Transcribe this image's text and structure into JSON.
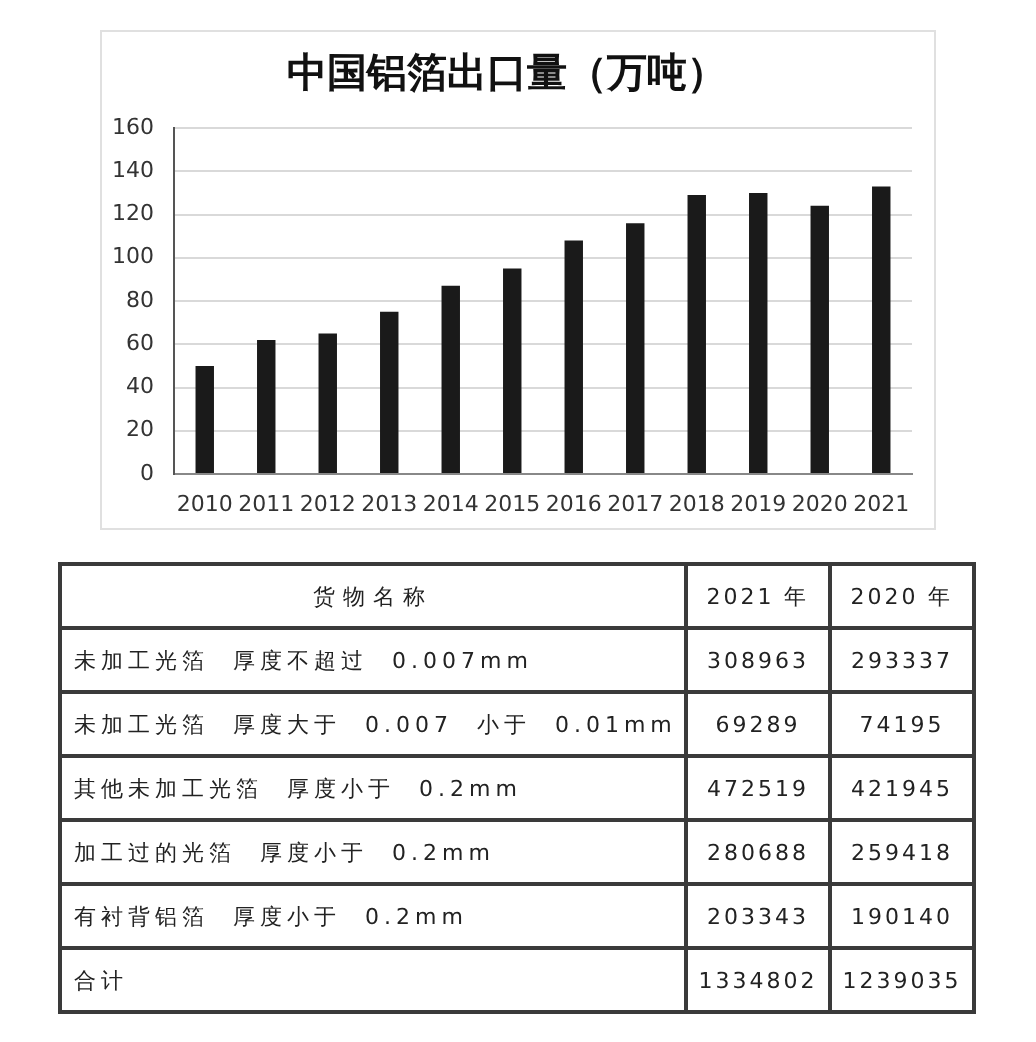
{
  "chart_data": [
    {
      "type": "bar",
      "title": "中国铝箔出口量（万吨）",
      "categories": [
        "2010",
        "2011",
        "2012",
        "2013",
        "2014",
        "2015",
        "2016",
        "2017",
        "2018",
        "2019",
        "2020",
        "2021"
      ],
      "values": [
        50,
        62,
        65,
        75,
        87,
        95,
        108,
        116,
        129,
        130,
        124,
        133
      ],
      "color": "#1a1a1a",
      "ylim": [
        0,
        160
      ],
      "yticks": [
        0,
        20,
        40,
        60,
        80,
        100,
        120,
        140,
        160
      ],
      "grid": "y"
    },
    {
      "type": "other",
      "ylabel": "货物名称",
      "categories": [
        "未加工光箔 厚度不超过 0.007mm",
        "未加工光箔 厚度大于 0.007 小于 0.01mm",
        "其他未加工光箔 厚度小于 0.2mm",
        "加工过的光箔 厚度小于 0.2mm",
        "有衬背铝箔 厚度小于 0.2mm",
        "合计"
      ],
      "series": [
        {
          "name": "2021 年",
          "values": [
            308963,
            69289,
            472519,
            280688,
            203343,
            1334802
          ]
        },
        {
          "name": "2020 年",
          "values": [
            293337,
            74195,
            421945,
            259418,
            190140,
            1239035
          ]
        }
      ],
      "data_labels": true
    }
  ]
}
